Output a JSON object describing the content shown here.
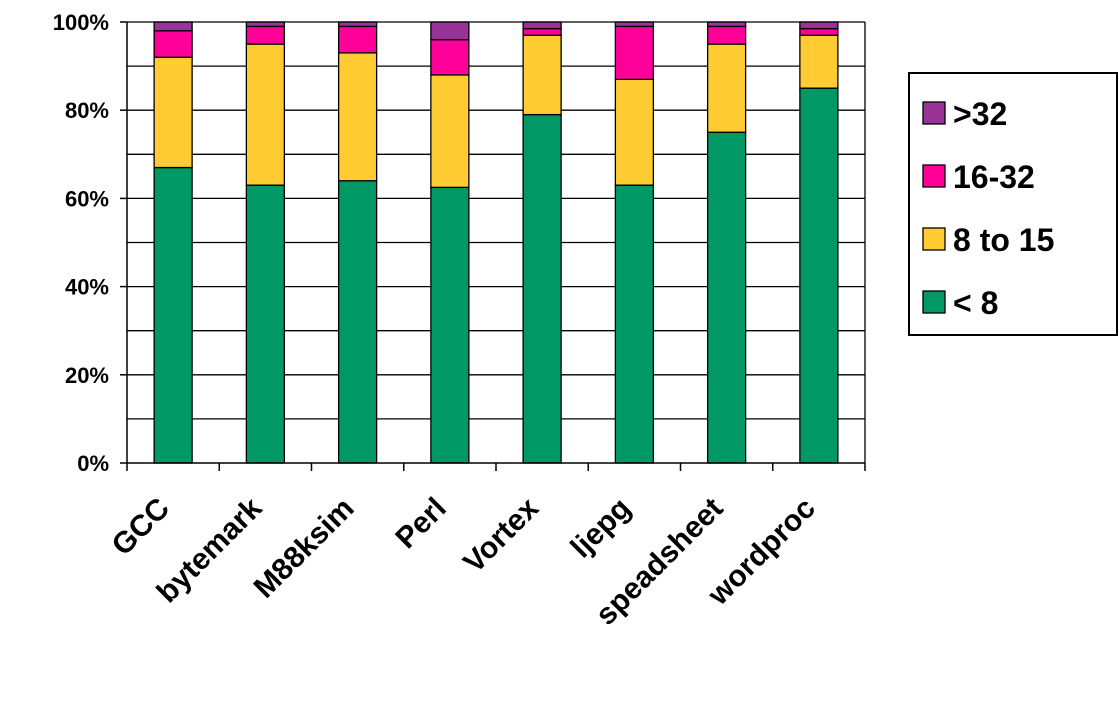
{
  "chart_data": {
    "type": "bar",
    "stacked": true,
    "percent_stacked": true,
    "categories": [
      "GCC",
      "bytemark",
      "M88ksim",
      "Perl",
      "Vortex",
      "ljepg",
      "speadsheet",
      "wordproc"
    ],
    "series": [
      {
        "name": "< 8",
        "color": "#009966",
        "values": [
          67,
          63,
          64,
          62.5,
          79,
          63,
          75,
          85
        ]
      },
      {
        "name": "8 to 15",
        "color": "#FFCC33",
        "values": [
          25,
          32,
          29,
          25.5,
          18,
          24,
          20,
          12
        ]
      },
      {
        "name": "16-32",
        "color": "#FF0099",
        "values": [
          6,
          4,
          6,
          8,
          1.5,
          12,
          4,
          1.5
        ]
      },
      {
        "name": ">32",
        "color": "#993399",
        "values": [
          2,
          1,
          1,
          4,
          1.5,
          1,
          1,
          1.5
        ]
      }
    ],
    "ylim": [
      0,
      100
    ],
    "y_ticks": [
      "0%",
      "20%",
      "40%",
      "60%",
      "80%",
      "100%"
    ],
    "y_gridlines": true,
    "y_gridline_step": 10,
    "legend_position": "right",
    "legend_order": [
      ">32",
      "16-32",
      "8 to 15",
      " < 8"
    ],
    "title": "",
    "xlabel": "",
    "ylabel": ""
  }
}
